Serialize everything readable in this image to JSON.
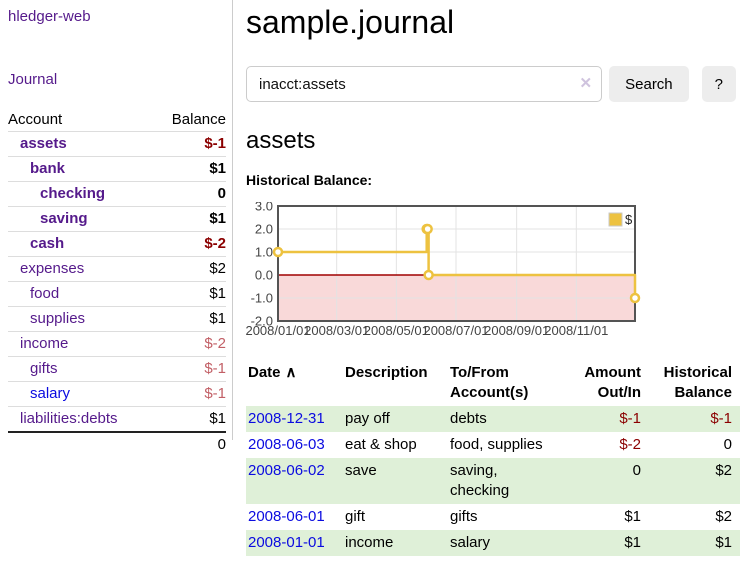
{
  "app": {
    "brand": "hledger-web",
    "nav_journal": "Journal"
  },
  "colors": {
    "link_visited_purple": "#551a8b",
    "link_blue": "#0b0be0",
    "negative_strong": "#8b0000",
    "negative_muted": "#c25f66",
    "row_stripe_green": "#dff0d8",
    "series_gold": "#edc240"
  },
  "sidebar": {
    "accounts_header": {
      "account": "Account",
      "balance": "Balance"
    },
    "accounts": [
      {
        "name": "assets",
        "indent": 1,
        "bold": true,
        "balance": "$-1",
        "neg": "strong"
      },
      {
        "name": "bank",
        "indent": 2,
        "bold": true,
        "balance": "$1"
      },
      {
        "name": "checking",
        "indent": 3,
        "bold": true,
        "balance": "0"
      },
      {
        "name": "saving",
        "indent": 3,
        "bold": true,
        "balance": "$1"
      },
      {
        "name": "cash",
        "indent": 2,
        "bold": true,
        "balance": "$-2",
        "neg": "strong"
      },
      {
        "name": "expenses",
        "indent": 1,
        "bold": false,
        "balance": "$2"
      },
      {
        "name": "food",
        "indent": 2,
        "bold": false,
        "balance": "$1"
      },
      {
        "name": "supplies",
        "indent": 2,
        "bold": false,
        "balance": "$1"
      },
      {
        "name": "income",
        "indent": 1,
        "bold": false,
        "balance": "$-2",
        "neg": "muted"
      },
      {
        "name": "gifts",
        "indent": 2,
        "bold": false,
        "balance": "$-1",
        "neg": "muted"
      },
      {
        "name": "salary",
        "indent": 2,
        "bold": false,
        "balance": "$-1",
        "neg": "muted",
        "link": "blue"
      },
      {
        "name": "liabilities:debts",
        "indent": 1,
        "bold": false,
        "balance": "$1"
      }
    ],
    "total": "0"
  },
  "header": {
    "title": "sample.journal"
  },
  "search": {
    "value": "inacct:assets",
    "clear_icon": "✕",
    "button": "Search",
    "help_button": "?"
  },
  "page": {
    "account_title": "assets",
    "chart_label": "Historical Balance:"
  },
  "chart_data": {
    "type": "line",
    "title": "Historical Balance",
    "series": [
      {
        "name": "$",
        "color": "#edc240",
        "step": true,
        "points": [
          [
            "2008-01-01",
            1
          ],
          [
            "2008-06-01",
            2
          ],
          [
            "2008-06-02",
            2
          ],
          [
            "2008-06-03",
            0
          ],
          [
            "2008-12-31",
            -1
          ]
        ]
      }
    ],
    "xlim": [
      "2008-01-01",
      "2008-12-31"
    ],
    "ylim": [
      -2,
      3
    ],
    "x_ticks": [
      "2008/01/01",
      "2008/03/01",
      "2008/05/01",
      "2008/07/01",
      "2008/09/01",
      "2008/11/01"
    ],
    "y_ticks": [
      "3.0",
      "2.0",
      "1.0",
      "0.0",
      "-1.0",
      "-2.0"
    ],
    "grid": true,
    "negative_region_color": "#f9d9d9",
    "zero_line_color": "#a00000",
    "border_color": "#545454",
    "legend": {
      "label": "$",
      "position": "top-right"
    }
  },
  "register": {
    "columns": [
      {
        "label": "Date",
        "sort": "∧",
        "align": "left"
      },
      {
        "label": "Description",
        "align": "left"
      },
      {
        "label": "To/From Account(s)",
        "align": "left"
      },
      {
        "label": "Amount Out/In",
        "align": "right"
      },
      {
        "label": "Historical Balance",
        "align": "right"
      }
    ],
    "rows": [
      {
        "date": "2008-12-31",
        "description": "pay off",
        "accounts": "debts",
        "amount": "$-1",
        "balance": "$-1"
      },
      {
        "date": "2008-06-03",
        "description": "eat & shop",
        "accounts": "food, supplies",
        "amount": "$-2",
        "balance": "0"
      },
      {
        "date": "2008-06-02",
        "description": "save",
        "accounts": "saving, checking",
        "amount": "0",
        "balance": "$2"
      },
      {
        "date": "2008-06-01",
        "description": "gift",
        "accounts": "gifts",
        "amount": "$1",
        "balance": "$2"
      },
      {
        "date": "2008-01-01",
        "description": "income",
        "accounts": "salary",
        "amount": "$1",
        "balance": "$1"
      }
    ]
  }
}
